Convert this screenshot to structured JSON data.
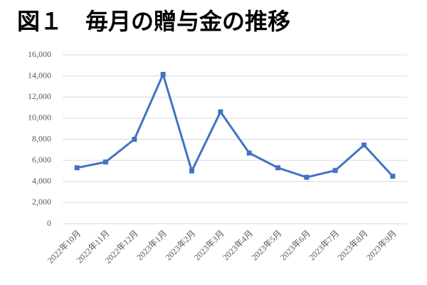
{
  "chart_data": {
    "type": "line",
    "title": "図１　毎月の贈与金の推移",
    "categories": [
      "2022年10月",
      "2022年11月",
      "2022年12月",
      "2023年1月",
      "2023年2月",
      "2023年3月",
      "2023年4月",
      "2023年5月",
      "2023年6月",
      "2023年7月",
      "2023年8月",
      "2023年9月"
    ],
    "values": [
      5300,
      5850,
      8000,
      14150,
      5000,
      10600,
      6700,
      5300,
      4400,
      5050,
      7450,
      4500
    ],
    "color": "#4472c4",
    "ylim": [
      0,
      16000
    ],
    "yticks": [
      0,
      {
        "value": 2000,
        "label": "2,000"
      },
      {
        "value": 4000,
        "label": "4,000"
      },
      {
        "value": 6000,
        "label": "6,000"
      },
      {
        "value": 8000,
        "label": "8,000"
      },
      {
        "value": 10000,
        "label": "10,000"
      },
      {
        "value": 12000,
        "label": "12,000"
      },
      {
        "value": 14000,
        "label": "14,000"
      },
      {
        "value": 16000,
        "label": "16,000"
      }
    ],
    "grid": true
  }
}
